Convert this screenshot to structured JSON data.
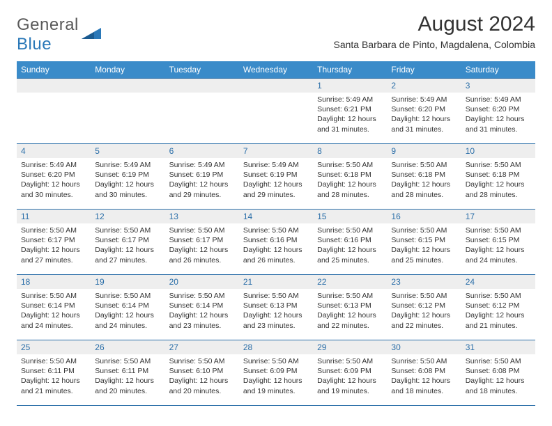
{
  "logo": {
    "part1": "General",
    "part2": "Blue"
  },
  "title": "August 2024",
  "location": "Santa Barbara de Pinto, Magdalena, Colombia",
  "colors": {
    "header_bg": "#3a8bc9",
    "header_text": "#ffffff",
    "daynum_bg": "#eeeeee",
    "daynum_text": "#2a6ea8",
    "border": "#2a6ea8",
    "body_text": "#333333",
    "logo_gray": "#5a5a5a",
    "logo_blue": "#2a78b8"
  },
  "dayHeaders": [
    "Sunday",
    "Monday",
    "Tuesday",
    "Wednesday",
    "Thursday",
    "Friday",
    "Saturday"
  ],
  "weeks": [
    [
      {
        "n": "",
        "sr": "",
        "ss": "",
        "dl": ""
      },
      {
        "n": "",
        "sr": "",
        "ss": "",
        "dl": ""
      },
      {
        "n": "",
        "sr": "",
        "ss": "",
        "dl": ""
      },
      {
        "n": "",
        "sr": "",
        "ss": "",
        "dl": ""
      },
      {
        "n": "1",
        "sr": "5:49 AM",
        "ss": "6:21 PM",
        "dl": "12 hours and 31 minutes."
      },
      {
        "n": "2",
        "sr": "5:49 AM",
        "ss": "6:20 PM",
        "dl": "12 hours and 31 minutes."
      },
      {
        "n": "3",
        "sr": "5:49 AM",
        "ss": "6:20 PM",
        "dl": "12 hours and 31 minutes."
      }
    ],
    [
      {
        "n": "4",
        "sr": "5:49 AM",
        "ss": "6:20 PM",
        "dl": "12 hours and 30 minutes."
      },
      {
        "n": "5",
        "sr": "5:49 AM",
        "ss": "6:19 PM",
        "dl": "12 hours and 30 minutes."
      },
      {
        "n": "6",
        "sr": "5:49 AM",
        "ss": "6:19 PM",
        "dl": "12 hours and 29 minutes."
      },
      {
        "n": "7",
        "sr": "5:49 AM",
        "ss": "6:19 PM",
        "dl": "12 hours and 29 minutes."
      },
      {
        "n": "8",
        "sr": "5:50 AM",
        "ss": "6:18 PM",
        "dl": "12 hours and 28 minutes."
      },
      {
        "n": "9",
        "sr": "5:50 AM",
        "ss": "6:18 PM",
        "dl": "12 hours and 28 minutes."
      },
      {
        "n": "10",
        "sr": "5:50 AM",
        "ss": "6:18 PM",
        "dl": "12 hours and 28 minutes."
      }
    ],
    [
      {
        "n": "11",
        "sr": "5:50 AM",
        "ss": "6:17 PM",
        "dl": "12 hours and 27 minutes."
      },
      {
        "n": "12",
        "sr": "5:50 AM",
        "ss": "6:17 PM",
        "dl": "12 hours and 27 minutes."
      },
      {
        "n": "13",
        "sr": "5:50 AM",
        "ss": "6:17 PM",
        "dl": "12 hours and 26 minutes."
      },
      {
        "n": "14",
        "sr": "5:50 AM",
        "ss": "6:16 PM",
        "dl": "12 hours and 26 minutes."
      },
      {
        "n": "15",
        "sr": "5:50 AM",
        "ss": "6:16 PM",
        "dl": "12 hours and 25 minutes."
      },
      {
        "n": "16",
        "sr": "5:50 AM",
        "ss": "6:15 PM",
        "dl": "12 hours and 25 minutes."
      },
      {
        "n": "17",
        "sr": "5:50 AM",
        "ss": "6:15 PM",
        "dl": "12 hours and 24 minutes."
      }
    ],
    [
      {
        "n": "18",
        "sr": "5:50 AM",
        "ss": "6:14 PM",
        "dl": "12 hours and 24 minutes."
      },
      {
        "n": "19",
        "sr": "5:50 AM",
        "ss": "6:14 PM",
        "dl": "12 hours and 24 minutes."
      },
      {
        "n": "20",
        "sr": "5:50 AM",
        "ss": "6:14 PM",
        "dl": "12 hours and 23 minutes."
      },
      {
        "n": "21",
        "sr": "5:50 AM",
        "ss": "6:13 PM",
        "dl": "12 hours and 23 minutes."
      },
      {
        "n": "22",
        "sr": "5:50 AM",
        "ss": "6:13 PM",
        "dl": "12 hours and 22 minutes."
      },
      {
        "n": "23",
        "sr": "5:50 AM",
        "ss": "6:12 PM",
        "dl": "12 hours and 22 minutes."
      },
      {
        "n": "24",
        "sr": "5:50 AM",
        "ss": "6:12 PM",
        "dl": "12 hours and 21 minutes."
      }
    ],
    [
      {
        "n": "25",
        "sr": "5:50 AM",
        "ss": "6:11 PM",
        "dl": "12 hours and 21 minutes."
      },
      {
        "n": "26",
        "sr": "5:50 AM",
        "ss": "6:11 PM",
        "dl": "12 hours and 20 minutes."
      },
      {
        "n": "27",
        "sr": "5:50 AM",
        "ss": "6:10 PM",
        "dl": "12 hours and 20 minutes."
      },
      {
        "n": "28",
        "sr": "5:50 AM",
        "ss": "6:09 PM",
        "dl": "12 hours and 19 minutes."
      },
      {
        "n": "29",
        "sr": "5:50 AM",
        "ss": "6:09 PM",
        "dl": "12 hours and 19 minutes."
      },
      {
        "n": "30",
        "sr": "5:50 AM",
        "ss": "6:08 PM",
        "dl": "12 hours and 18 minutes."
      },
      {
        "n": "31",
        "sr": "5:50 AM",
        "ss": "6:08 PM",
        "dl": "12 hours and 18 minutes."
      }
    ]
  ],
  "labels": {
    "sunrise": "Sunrise:",
    "sunset": "Sunset:",
    "daylight": "Daylight:"
  }
}
